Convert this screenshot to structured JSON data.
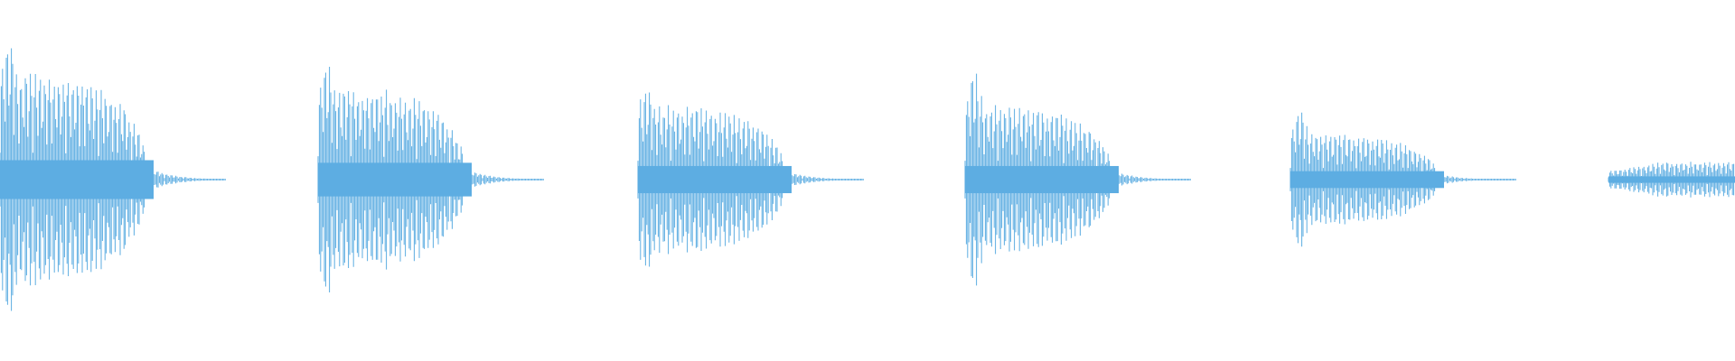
{
  "waveform": {
    "color": "#5dade2",
    "background": "#ffffff",
    "bursts": [
      {
        "peak_level": 0.82,
        "body_level": 0.6
      },
      {
        "peak_level": 0.68,
        "body_level": 0.52
      },
      {
        "peak_level": 0.52,
        "body_level": 0.42
      },
      {
        "peak_level": 0.62,
        "body_level": 0.42
      },
      {
        "peak_level": 0.4,
        "body_level": 0.26
      },
      {
        "peak_level": 0.12,
        "body_level": 0.1
      }
    ]
  }
}
